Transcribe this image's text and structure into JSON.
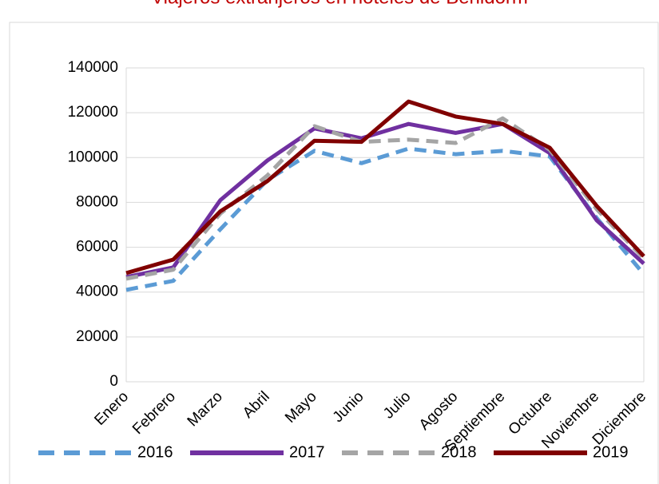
{
  "chart_data": {
    "type": "line",
    "title": "Viajeros extranjeros en hoteles de Benidorm",
    "categories": [
      "Enero",
      "Febrero",
      "Marzo",
      "Abril",
      "Mayo",
      "Junio",
      "Julio",
      "Agosto",
      "Septiembre",
      "Octubre",
      "Noviembre",
      "Diciembre"
    ],
    "series": [
      {
        "name": "2016",
        "color": "#5b9bd5",
        "dashed": true,
        "values": [
          41000,
          45000,
          68000,
          90000,
          103000,
          97500,
          104000,
          101500,
          103000,
          100500,
          73000,
          48000
        ]
      },
      {
        "name": "2017",
        "color": "#7030a0",
        "dashed": false,
        "values": [
          46700,
          51000,
          81000,
          98700,
          113000,
          108600,
          115000,
          111000,
          115000,
          102000,
          72000,
          52700
        ]
      },
      {
        "name": "2018",
        "color": "#a5a5a5",
        "dashed": true,
        "values": [
          46000,
          50000,
          75000,
          92000,
          114000,
          107000,
          108000,
          106500,
          117500,
          103500,
          77000,
          55000
        ]
      },
      {
        "name": "2019",
        "color": "#800000",
        "dashed": false,
        "values": [
          48500,
          54500,
          76000,
          89500,
          107500,
          107000,
          125000,
          118300,
          115000,
          104400,
          78400,
          56000
        ]
      }
    ],
    "ylim": [
      0,
      140000
    ],
    "yticks": [
      0,
      20000,
      40000,
      60000,
      80000,
      100000,
      120000,
      140000
    ],
    "grid": true
  }
}
